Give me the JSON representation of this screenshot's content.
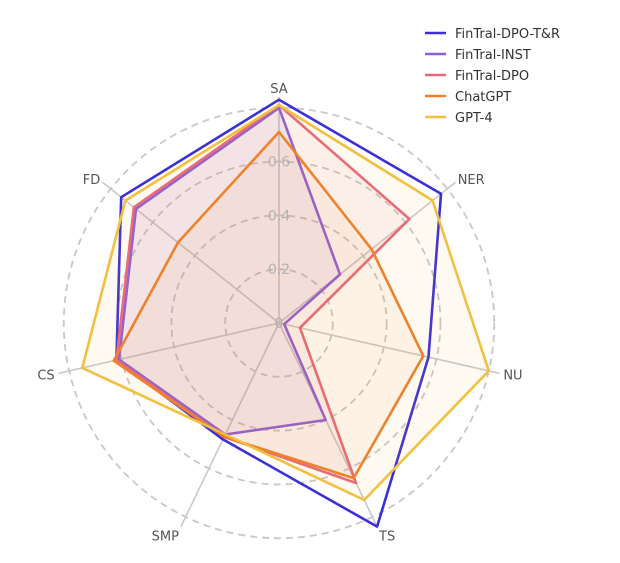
{
  "chart_data": {
    "type": "radar",
    "axes": [
      "SA",
      "NER",
      "NU",
      "TS",
      "SMP",
      "CS",
      "FD"
    ],
    "radial_ticks": [
      "0",
      "0.2",
      "0.4",
      "0.6"
    ],
    "rmax": 0.84,
    "legend_position": "top-right",
    "series": [
      {
        "name": "FinTral-DPO-T&R",
        "color": "#3b2fd6",
        "fill_opacity": 0.0,
        "values": [
          0.83,
          0.77,
          0.57,
          0.84,
          0.48,
          0.62,
          0.75
        ]
      },
      {
        "name": "FinTral-INST",
        "color": "#8a5cde",
        "fill_opacity": 0.08,
        "values": [
          0.8,
          0.29,
          0.02,
          0.4,
          0.46,
          0.61,
          0.68
        ]
      },
      {
        "name": "FinTral-DPO",
        "color": "#e8667d",
        "fill_opacity": 0.07,
        "values": [
          0.81,
          0.62,
          0.08,
          0.66,
          0.47,
          0.62,
          0.69
        ]
      },
      {
        "name": "ChatGPT",
        "color": "#ef7d2a",
        "fill_opacity": 0.06,
        "values": [
          0.71,
          0.44,
          0.55,
          0.64,
          0.47,
          0.63,
          0.48
        ]
      },
      {
        "name": "GPT-4",
        "color": "#f2bf3f",
        "fill_opacity": 0.07,
        "values": [
          0.81,
          0.73,
          0.8,
          0.73,
          0.46,
          0.75,
          0.73
        ]
      }
    ]
  }
}
